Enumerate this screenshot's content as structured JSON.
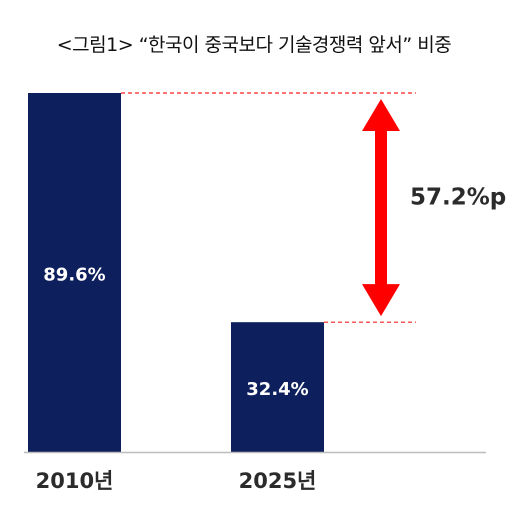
{
  "title": "<그림1> “한국이 중국보다 기술경쟁력 앞서” 비중",
  "colors": {
    "bar": "#0d1f5c",
    "arrow": "#ff0000",
    "guide": "#ff2020",
    "axis": "#bdbdbd",
    "label_in_bar": "#ffffff",
    "axis_text": "#2b2b2b"
  },
  "chart_data": {
    "type": "bar",
    "categories": [
      "2010년",
      "2025년"
    ],
    "values": [
      89.6,
      32.4
    ],
    "value_labels": [
      "89.6%",
      "32.4%"
    ],
    "ylim": [
      0,
      89.6
    ],
    "grid": false,
    "legend": "none",
    "annotation": {
      "type": "difference-arrow",
      "from": 89.6,
      "to": 32.4,
      "label": "57.2%p"
    }
  }
}
